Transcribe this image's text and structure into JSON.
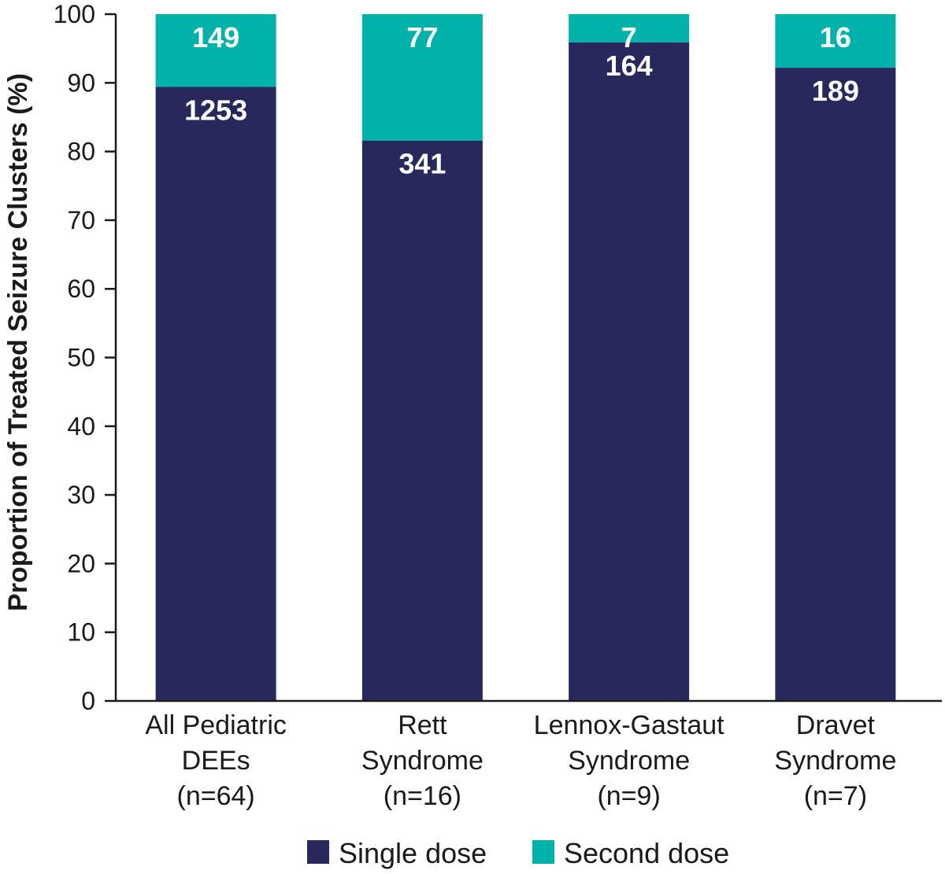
{
  "chart_data": {
    "type": "bar",
    "stacked": true,
    "categories": [
      [
        "All Pediatric",
        "DEEs",
        "(n=64)"
      ],
      [
        "Rett",
        "Syndrome",
        "(n=16)"
      ],
      [
        "Lennox-Gastaut",
        "Syndrome",
        "(n=9)"
      ],
      [
        "Dravet",
        "Syndrome",
        "(n=7)"
      ]
    ],
    "series": [
      {
        "name": "Single dose",
        "color": "#27285c",
        "percent": [
          89.4,
          81.6,
          95.9,
          92.2
        ],
        "labels": [
          "1253",
          "341",
          "164",
          "189"
        ]
      },
      {
        "name": "Second dose",
        "color": "#00b2aa",
        "percent": [
          10.6,
          18.4,
          4.1,
          7.8
        ],
        "labels": [
          "149",
          "77",
          "7",
          "16"
        ]
      }
    ],
    "ylabel": "Proportion of Treated Seizure Clusters (%)",
    "ylim": [
      0,
      100
    ],
    "yticks": [
      0,
      10,
      20,
      30,
      40,
      50,
      60,
      70,
      80,
      90,
      100
    ],
    "grid": false,
    "legend_position": "bottom"
  }
}
